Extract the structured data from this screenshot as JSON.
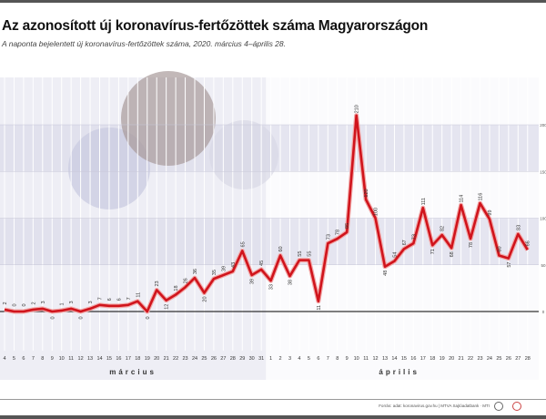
{
  "chart_data": {
    "type": "line",
    "title": "Az azonosított új koronavírus-fertőzöttek száma Magyarországon",
    "subtitle": "A naponta bejelentett új koronavírus-fertőzöttek száma, 2020. március 4–április 28.",
    "months": [
      {
        "label": "március",
        "days": [
          4,
          5,
          6,
          7,
          8,
          9,
          10,
          11,
          12,
          13,
          14,
          15,
          16,
          17,
          18,
          19,
          20,
          21,
          22,
          23,
          24,
          25,
          26,
          27,
          28,
          29,
          30,
          31
        ]
      },
      {
        "label": "április",
        "days": [
          1,
          2,
          3,
          4,
          5,
          6,
          7,
          8,
          9,
          10,
          11,
          12,
          13,
          14,
          15,
          16,
          17,
          18,
          19,
          20,
          21,
          22,
          23,
          24,
          25,
          26,
          27,
          28
        ]
      }
    ],
    "values": [
      2,
      0,
      0,
      2,
      3,
      0,
      1,
      3,
      0,
      3,
      7,
      6,
      6,
      7,
      11,
      0,
      23,
      12,
      18,
      26,
      36,
      20,
      35,
      39,
      43,
      65,
      39,
      45,
      33,
      60,
      38,
      55,
      55,
      11,
      73,
      78,
      85,
      210,
      120,
      100,
      48,
      54,
      67,
      73,
      111,
      71,
      82,
      68,
      114,
      78,
      116,
      99,
      60,
      57,
      83,
      66
    ],
    "ylim": [
      0,
      210
    ],
    "yticks": [
      0,
      50,
      100,
      150,
      200
    ],
    "grid": true,
    "line_color": "#d0141c"
  },
  "footer": {
    "source": "Forrás: adat: koronavirus.gov.hu | MTVA Sajtóadatbank · MTI"
  }
}
